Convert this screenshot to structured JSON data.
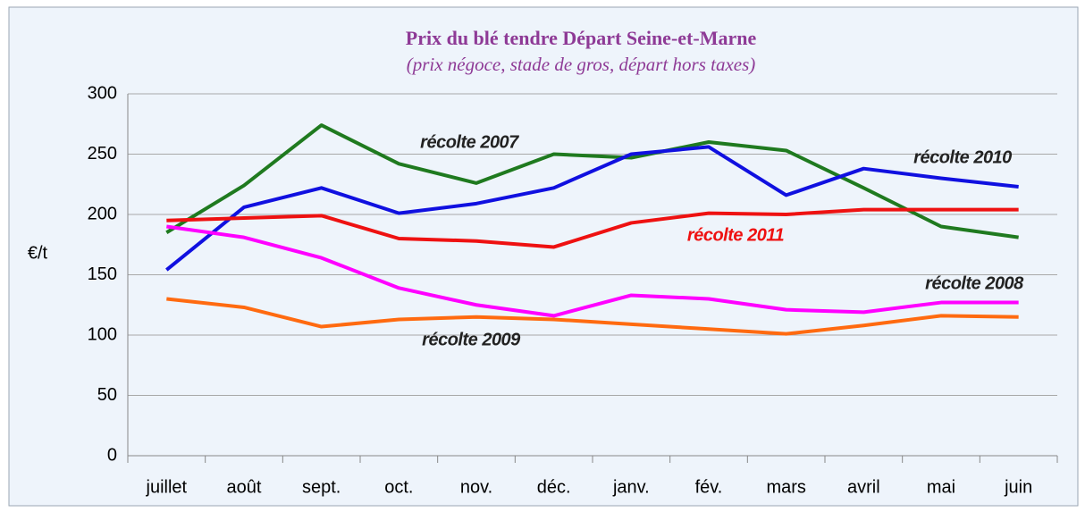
{
  "chart_data": {
    "type": "line",
    "title": "Prix du blé tendre Départ Seine-et-Marne",
    "subtitle": "(prix négoce, stade de gros, départ hors taxes)",
    "y_label": "€/t",
    "categories": [
      "juillet",
      "août",
      "sept.",
      "oct.",
      "nov.",
      "déc.",
      "janv.",
      "fév.",
      "mars",
      "avril",
      "mai",
      "juin"
    ],
    "ylim": [
      0,
      300
    ],
    "yticks": [
      0,
      50,
      100,
      150,
      200,
      250,
      300
    ],
    "grid": true,
    "series": [
      {
        "name": "récolte 2007",
        "color": "#1f7a1f",
        "values": [
          185,
          224,
          274,
          242,
          226,
          250,
          247,
          260,
          253,
          222,
          190,
          181
        ]
      },
      {
        "name": "récolte 2010",
        "color": "#1010e0",
        "values": [
          154,
          206,
          222,
          201,
          209,
          222,
          250,
          256,
          216,
          238,
          230,
          223
        ]
      },
      {
        "name": "récolte 2011",
        "color": "#ee1111",
        "values": [
          195,
          197,
          199,
          180,
          178,
          173,
          193,
          201,
          200,
          204,
          204,
          204
        ]
      },
      {
        "name": "récolte 2008",
        "color": "#ff00ff",
        "values": [
          190,
          181,
          164,
          139,
          125,
          116,
          133,
          130,
          121,
          119,
          127,
          127
        ]
      },
      {
        "name": "récolte 2009",
        "color": "#ff6a10",
        "values": [
          130,
          123,
          107,
          113,
          115,
          113,
          109,
          105,
          101,
          108,
          116,
          115
        ]
      }
    ]
  }
}
